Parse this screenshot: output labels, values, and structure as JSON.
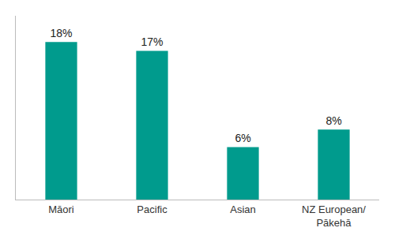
{
  "chart_data": {
    "type": "bar",
    "categories": [
      "Māori",
      "Pacific",
      "Asian",
      "NZ European/\nPākehā"
    ],
    "values": [
      18,
      17,
      6,
      8
    ],
    "value_labels": [
      "18%",
      "17%",
      "6%",
      "8%"
    ],
    "data_labels": true,
    "color": "#009B8D",
    "ylim": [
      0,
      21
    ],
    "tick_labels": "x",
    "grid": false
  }
}
